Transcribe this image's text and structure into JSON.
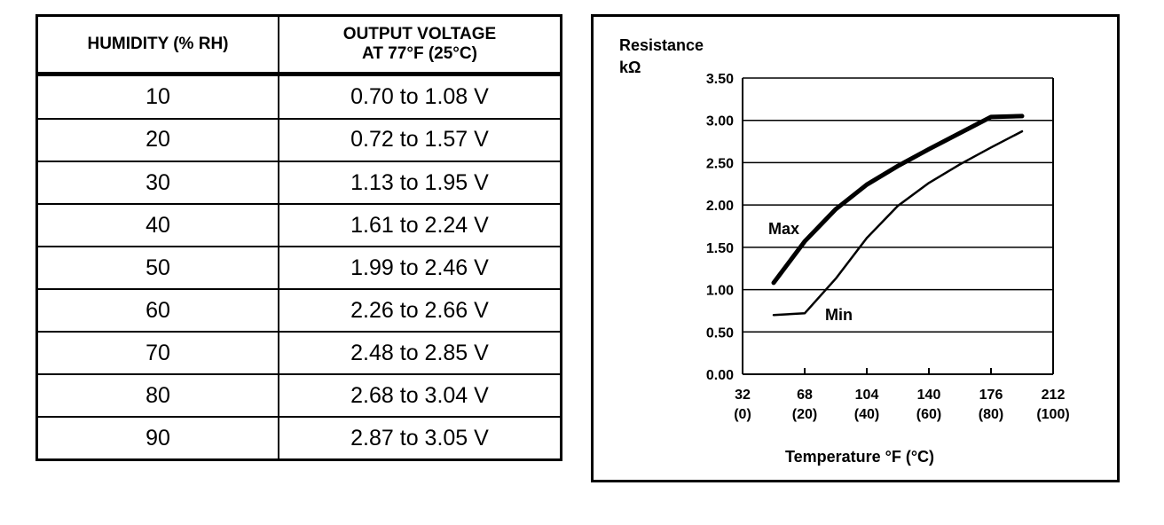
{
  "table": {
    "header_col1": "HUMIDITY (% RH)",
    "header_col2_line1": "OUTPUT VOLTAGE",
    "header_col2_line2": "AT 77°F (25°C)",
    "rows": [
      {
        "humidity": "10",
        "voltage": "0.70 to 1.08 V"
      },
      {
        "humidity": "20",
        "voltage": "0.72 to 1.57 V"
      },
      {
        "humidity": "30",
        "voltage": "1.13 to 1.95 V"
      },
      {
        "humidity": "40",
        "voltage": "1.61 to 2.24 V"
      },
      {
        "humidity": "50",
        "voltage": "1.99 to 2.46 V"
      },
      {
        "humidity": "60",
        "voltage": "2.26 to 2.66 V"
      },
      {
        "humidity": "70",
        "voltage": "2.48 to 2.85 V"
      },
      {
        "humidity": "80",
        "voltage": "2.68 to 3.04 V"
      },
      {
        "humidity": "90",
        "voltage": "2.87 to 3.05 V"
      }
    ]
  },
  "chart_data": {
    "type": "line",
    "ylabel_line1": "Resistance",
    "ylabel_line2": "kΩ",
    "xlabel": "Temperature °F (°C)",
    "ylim": [
      0,
      3.5
    ],
    "xlim": [
      32,
      212
    ],
    "yticks": [
      "0.00",
      "0.50",
      "1.00",
      "1.50",
      "2.00",
      "2.50",
      "3.00",
      "3.50"
    ],
    "xticks": [
      {
        "value": 32,
        "label": "32",
        "sublabel": "(0)"
      },
      {
        "value": 68,
        "label": "68",
        "sublabel": "(20)"
      },
      {
        "value": 104,
        "label": "104",
        "sublabel": "(40)"
      },
      {
        "value": 140,
        "label": "140",
        "sublabel": "(60)"
      },
      {
        "value": 176,
        "label": "176",
        "sublabel": "(80)"
      },
      {
        "value": 212,
        "label": "212",
        "sublabel": "(100)"
      }
    ],
    "grid": "horizontal",
    "series": [
      {
        "name": "Max",
        "x": [
          50,
          68,
          86,
          104,
          122,
          140,
          158,
          176,
          194
        ],
        "values": [
          1.08,
          1.57,
          1.95,
          2.24,
          2.46,
          2.66,
          2.85,
          3.04,
          3.05
        ]
      },
      {
        "name": "Min",
        "x": [
          50,
          68,
          86,
          104,
          122,
          140,
          158,
          176,
          194
        ],
        "values": [
          0.7,
          0.72,
          1.13,
          1.61,
          1.99,
          2.26,
          2.48,
          2.68,
          2.87
        ]
      }
    ]
  }
}
